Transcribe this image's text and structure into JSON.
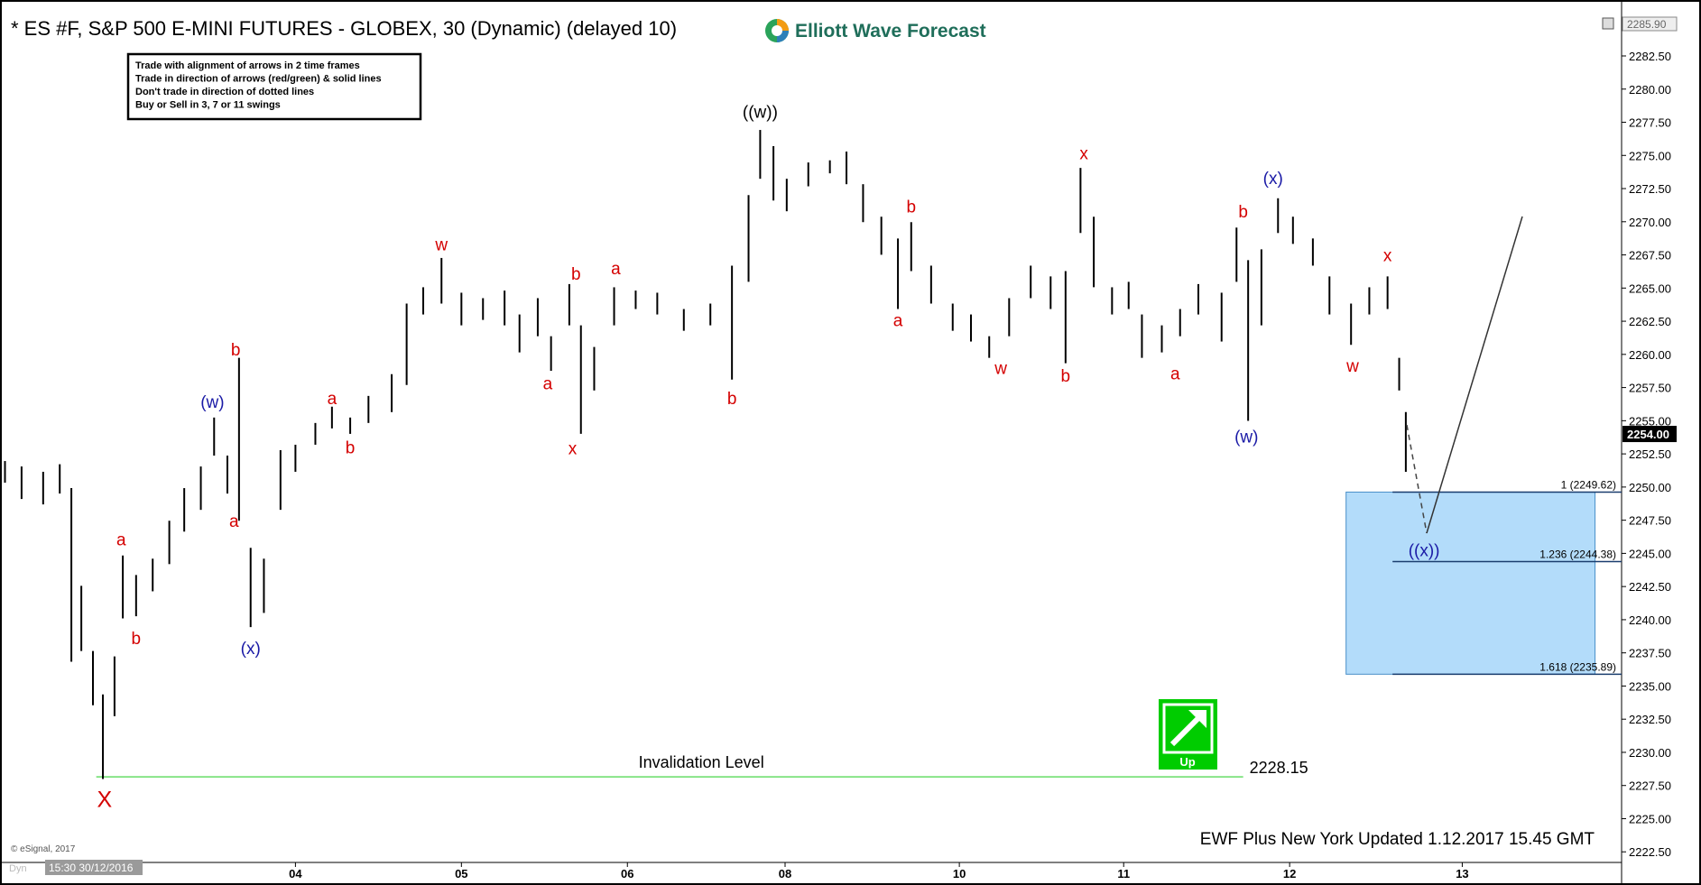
{
  "chart_data": {
    "type": "ohlc",
    "title": "* ES #F, S&P 500 E-MINI FUTURES - GLOBEX, 30 (Dynamic) (delayed 10)",
    "logo_text": "Elliott Wave Forecast",
    "notes": [
      "Trade with alignment of arrows in 2 time frames",
      "Trade in direction of arrows (red/green) & solid lines",
      "Don't trade in direction of dotted lines",
      "Buy or Sell in 3, 7 or 11 swings"
    ],
    "footer": "EWF Plus New York Updated 1.12.2017 15.45 GMT",
    "copyright": "© eSignal, 2017",
    "cursor_label": "15:30 30/12/2016",
    "study_label": "Dyn",
    "signal_label": "Up",
    "color": "#000000",
    "x": [
      -1.75,
      -1.65,
      -1.52,
      -1.42,
      -1.35,
      -1.29,
      -1.22,
      -1.16,
      -1.09,
      -1.04,
      -0.96,
      -0.86,
      -0.76,
      -0.67,
      -0.57,
      -0.49,
      -0.41,
      -0.34,
      -0.27,
      -0.19,
      -0.09,
      0,
      0.12,
      0.22,
      0.33,
      0.44,
      0.58,
      0.67,
      0.77,
      0.88,
      1.0,
      1.13,
      1.26,
      1.35,
      1.46,
      1.54,
      1.65,
      1.72,
      1.8,
      1.92,
      2.05,
      2.18,
      2.34,
      2.5,
      2.63,
      2.73,
      2.8,
      2.88,
      2.96,
      3.09,
      3.22,
      3.32,
      3.42,
      3.53,
      3.63,
      3.71,
      3.83,
      3.96,
      4.07,
      4.18,
      4.3,
      4.43,
      4.55,
      4.64,
      4.73,
      4.81,
      4.92,
      5.02,
      5.1,
      5.22,
      5.33,
      5.44,
      5.58,
      5.67,
      5.74,
      5.82,
      5.92,
      6.01,
      6.13,
      6.23,
      6.36,
      6.47,
      6.58,
      6.65,
      6.69
    ],
    "high": [
      2251.96,
      2251.55,
      2251.15,
      2251.72,
      2249.92,
      2242.55,
      2237.64,
      2234.37,
      2237.23,
      2244.84,
      2243.37,
      2244.6,
      2247.46,
      2249.92,
      2251.55,
      2255.24,
      2252.37,
      2259.74,
      2245.42,
      2244.6,
      2252.78,
      2253.19,
      2254.83,
      2256.06,
      2255.24,
      2256.87,
      2258.51,
      2263.83,
      2265.06,
      2267.27,
      2264.65,
      2264.24,
      2264.81,
      2263.01,
      2264.24,
      2261.37,
      2265.3,
      2262.19,
      2260.56,
      2265.06,
      2264.81,
      2264.65,
      2263.42,
      2263.83,
      2266.69,
      2272.01,
      2276.92,
      2275.7,
      2273.24,
      2274.47,
      2274.63,
      2275.29,
      2272.83,
      2270.38,
      2268.74,
      2269.97,
      2266.69,
      2263.83,
      2263.01,
      2261.37,
      2264.24,
      2266.69,
      2265.88,
      2266.28,
      2274.06,
      2270.38,
      2265.06,
      2265.47,
      2263.01,
      2262.19,
      2263.42,
      2265.3,
      2264.65,
      2269.56,
      2267.1,
      2267.92,
      2271.77,
      2270.38,
      2268.74,
      2265.88,
      2263.83,
      2265.06,
      2265.88,
      2259.74,
      2255.65
    ],
    "low": [
      2250.33,
      2249.1,
      2248.69,
      2249.51,
      2236.83,
      2237.64,
      2233.55,
      2227.99,
      2232.73,
      2240.1,
      2240.26,
      2242.14,
      2244.19,
      2246.64,
      2248.28,
      2252.37,
      2249.51,
      2247.46,
      2239.44,
      2240.51,
      2248.28,
      2251.15,
      2253.19,
      2254.42,
      2254.01,
      2254.83,
      2255.65,
      2257.69,
      2263.01,
      2263.83,
      2262.19,
      2262.6,
      2262.19,
      2260.15,
      2261.37,
      2258.76,
      2262.19,
      2254.01,
      2257.28,
      2262.19,
      2263.42,
      2263.01,
      2261.78,
      2262.19,
      2258.1,
      2265.47,
      2273.24,
      2271.6,
      2270.79,
      2272.67,
      2273.65,
      2272.83,
      2269.97,
      2267.51,
      2263.42,
      2266.28,
      2263.83,
      2261.78,
      2260.97,
      2259.74,
      2261.37,
      2264.24,
      2263.42,
      2259.33,
      2269.15,
      2265.06,
      2263.01,
      2263.42,
      2259.74,
      2260.15,
      2261.37,
      2263.01,
      2260.97,
      2265.47,
      2254.99,
      2262.19,
      2269.15,
      2268.33,
      2266.69,
      2263.01,
      2260.72,
      2263.01,
      2263.42,
      2257.28,
      2251.15
    ],
    "xlim": [
      -1.78,
      7.99
    ],
    "xticks": [
      {
        "value": 0,
        "label": "04"
      },
      {
        "value": 1,
        "label": "05"
      },
      {
        "value": 2,
        "label": "06"
      },
      {
        "value": 2.95,
        "label": "08"
      },
      {
        "value": 4,
        "label": "10"
      },
      {
        "value": 4.99,
        "label": "11"
      },
      {
        "value": 5.99,
        "label": "12"
      },
      {
        "value": 7.03,
        "label": "13"
      }
    ],
    "ylim": [
      2221.7,
      2285.9
    ],
    "yticks": [
      {
        "value": 2222.5,
        "label": "2222.50"
      },
      {
        "value": 2225,
        "label": "2225.00"
      },
      {
        "value": 2227.5,
        "label": "2227.50"
      },
      {
        "value": 2230,
        "label": "2230.00"
      },
      {
        "value": 2232.5,
        "label": "2232.50"
      },
      {
        "value": 2235,
        "label": "2235.00"
      },
      {
        "value": 2237.5,
        "label": "2237.50"
      },
      {
        "value": 2240,
        "label": "2240.00"
      },
      {
        "value": 2242.5,
        "label": "2242.50"
      },
      {
        "value": 2245,
        "label": "2245.00"
      },
      {
        "value": 2247.5,
        "label": "2247.50"
      },
      {
        "value": 2250,
        "label": "2250.00"
      },
      {
        "value": 2252.5,
        "label": "2252.50"
      },
      {
        "value": 2255,
        "label": "2255.00"
      },
      {
        "value": 2257.5,
        "label": "2257.50"
      },
      {
        "value": 2260,
        "label": "2260.00"
      },
      {
        "value": 2262.5,
        "label": "2262.50"
      },
      {
        "value": 2265,
        "label": "2265.00"
      },
      {
        "value": 2267.5,
        "label": "2267.50"
      },
      {
        "value": 2270,
        "label": "2270.00"
      },
      {
        "value": 2272.5,
        "label": "2272.50"
      },
      {
        "value": 2275,
        "label": "2275.00"
      },
      {
        "value": 2277.5,
        "label": "2277.50"
      },
      {
        "value": 2280,
        "label": "2280.00"
      },
      {
        "value": 2282.5,
        "label": "2282.50"
      }
    ],
    "current_price": {
      "value": 2254,
      "label": "2254.00"
    },
    "top_price": {
      "value": 2285.9,
      "label": "2285.90"
    },
    "invalidation": {
      "label": "Invalidation Level",
      "value": 2228.15,
      "x": [
        -1.2,
        5.71
      ],
      "color": "#66dd66"
    },
    "fib_levels": [
      {
        "value": 2249.62,
        "label": "1 (2249.62)"
      },
      {
        "value": 2244.38,
        "label": "1.236 (2244.38)"
      },
      {
        "value": 2235.89,
        "label": "1.618 (2235.89)"
      }
    ],
    "target_zone": {
      "x": [
        6.33,
        7.83
      ],
      "line_start": 6.61,
      "color": "#b3dcfa"
    },
    "wave_labels": [
      {
        "text": "X",
        "x": -1.15,
        "y": 2226.35,
        "color": "#d40000"
      },
      {
        "text": "a",
        "x": -1.05,
        "y": 2246.07,
        "color": "#d40000"
      },
      {
        "text": "b",
        "x": -0.96,
        "y": 2238.63,
        "color": "#d40000"
      },
      {
        "text": "(w)",
        "x": -0.5,
        "y": 2256.46,
        "color": "#1a1aa6"
      },
      {
        "text": "b",
        "x": -0.36,
        "y": 2260.39,
        "color": "#d40000"
      },
      {
        "text": "a",
        "x": -0.37,
        "y": 2247.46,
        "color": "#d40000"
      },
      {
        "text": "(x)",
        "x": -0.27,
        "y": 2237.89,
        "color": "#1a1aa6"
      },
      {
        "text": "a",
        "x": 0.22,
        "y": 2256.71,
        "color": "#d40000"
      },
      {
        "text": "b",
        "x": 0.33,
        "y": 2253.03,
        "color": "#d40000"
      },
      {
        "text": "w",
        "x": 0.88,
        "y": 2268.33,
        "color": "#d40000"
      },
      {
        "text": "a",
        "x": 1.52,
        "y": 2257.86,
        "color": "#d40000"
      },
      {
        "text": "b",
        "x": 1.69,
        "y": 2266.12,
        "color": "#d40000"
      },
      {
        "text": "x",
        "x": 1.67,
        "y": 2252.95,
        "color": "#d40000"
      },
      {
        "text": "a",
        "x": 1.93,
        "y": 2266.53,
        "color": "#d40000"
      },
      {
        "text": "b",
        "x": 2.63,
        "y": 2256.71,
        "color": "#d40000"
      },
      {
        "text": "((w))",
        "x": 2.8,
        "y": 2278.31,
        "color": "#000000"
      },
      {
        "text": "a",
        "x": 3.63,
        "y": 2262.6,
        "color": "#d40000"
      },
      {
        "text": "b",
        "x": 3.71,
        "y": 2271.19,
        "color": "#d40000"
      },
      {
        "text": "w",
        "x": 4.25,
        "y": 2259.0,
        "color": "#d40000"
      },
      {
        "text": "b",
        "x": 4.64,
        "y": 2258.43,
        "color": "#d40000"
      },
      {
        "text": "x",
        "x": 4.75,
        "y": 2275.2,
        "color": "#d40000"
      },
      {
        "text": "a",
        "x": 5.3,
        "y": 2258.59,
        "color": "#d40000"
      },
      {
        "text": "b",
        "x": 5.71,
        "y": 2270.79,
        "color": "#d40000"
      },
      {
        "text": "(w)",
        "x": 5.73,
        "y": 2253.85,
        "color": "#1a1aa6"
      },
      {
        "text": "(x)",
        "x": 5.89,
        "y": 2273.32,
        "color": "#1a1aa6"
      },
      {
        "text": "w",
        "x": 6.37,
        "y": 2259.17,
        "color": "#d40000"
      },
      {
        "text": "x",
        "x": 6.58,
        "y": 2267.51,
        "color": "#d40000"
      },
      {
        "text": "((x))",
        "x": 6.8,
        "y": 2245.25,
        "color": "#1a1aa6"
      }
    ]
  }
}
